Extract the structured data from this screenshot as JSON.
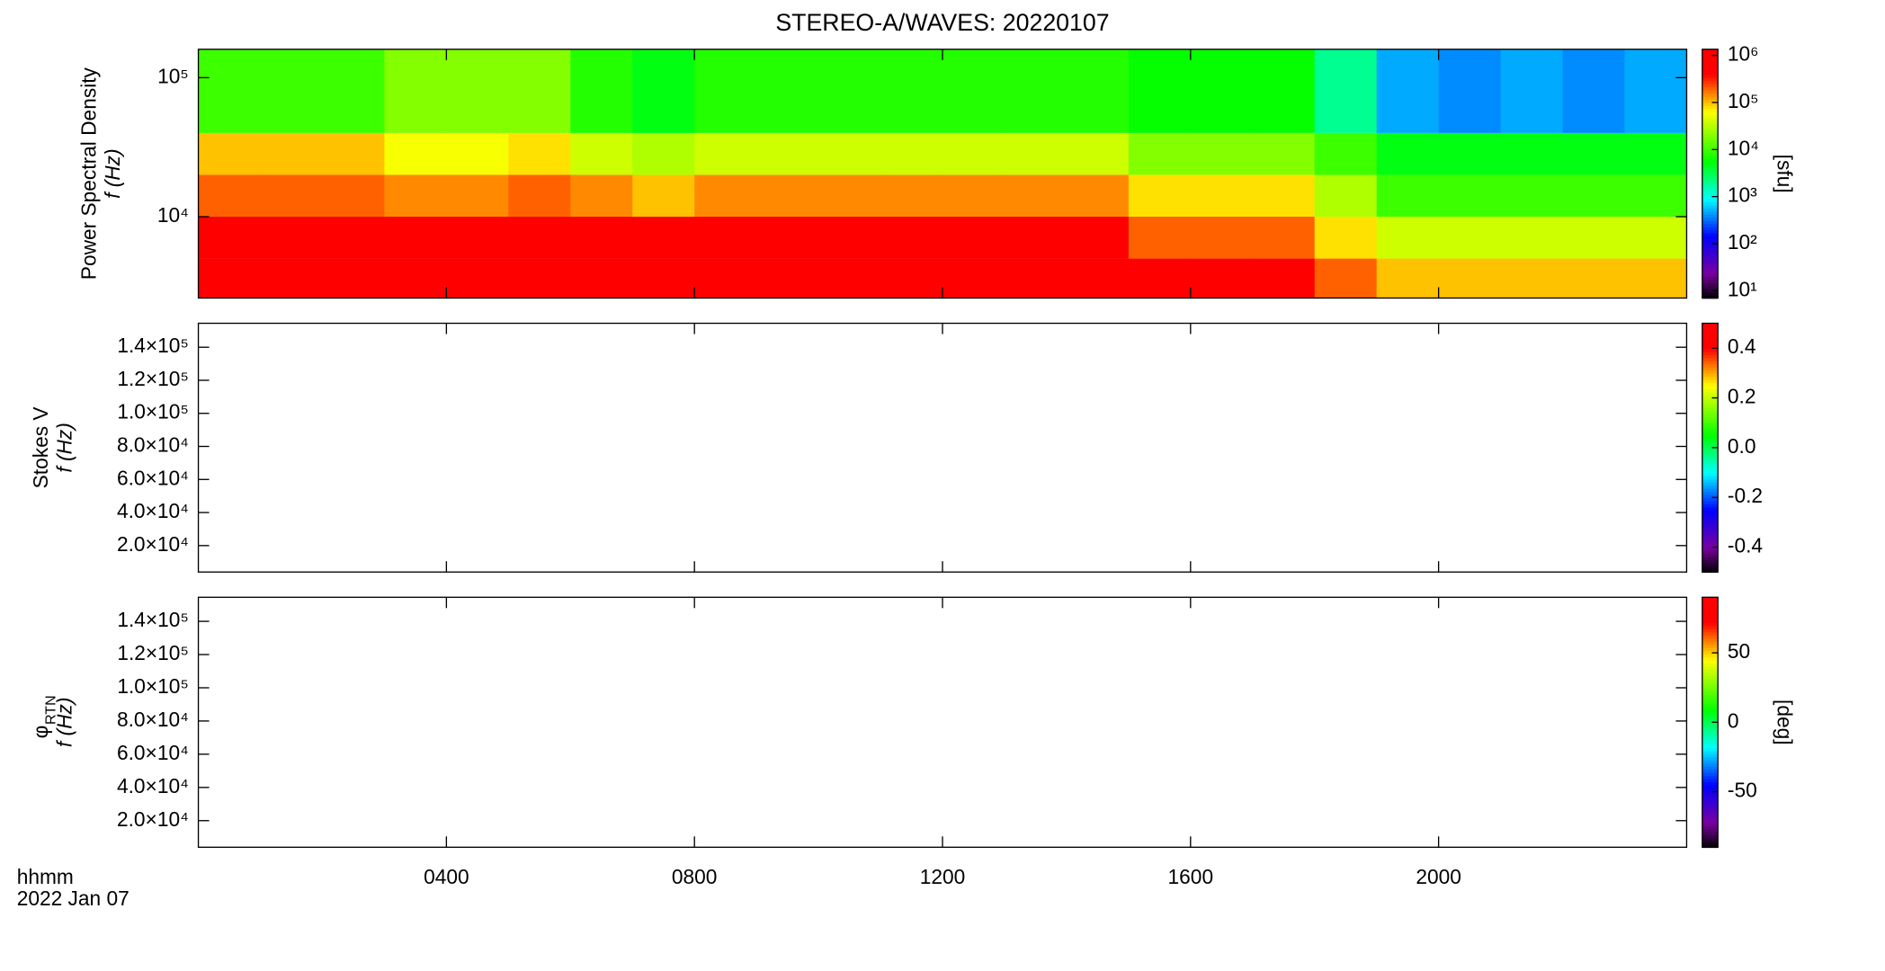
{
  "title": "STEREO-A/WAVES: 20220107",
  "x_label_lines": [
    "hhmm",
    "2022 Jan 07"
  ],
  "chart_data": [
    {
      "type": "heatmap",
      "ylabel": "Power Spectral Density",
      "ylabel2": "f (Hz)",
      "ylog": true,
      "ylim": [
        2600,
        160000
      ],
      "yticks": [
        {
          "value": 10000,
          "label": "10⁴"
        },
        {
          "value": 100000,
          "label": "10⁵"
        }
      ],
      "xlim": [
        0,
        24
      ],
      "x_edges": [
        0,
        1,
        2,
        3,
        4,
        5,
        6,
        7,
        8,
        9,
        10,
        11,
        12,
        13,
        14,
        15,
        16,
        17,
        18,
        19,
        20,
        21,
        22,
        23,
        24
      ],
      "y_edges": [
        2600,
        5000,
        10000,
        20000,
        40000,
        160000
      ],
      "z": [
        [
          1000000,
          1000000,
          1000000,
          1000000,
          1000000,
          1000000,
          1000000,
          1000000,
          1000000,
          1000000,
          1000000,
          1000000,
          1000000,
          1000000,
          1000000,
          500000,
          500000,
          500000,
          200000,
          100000,
          100000,
          100000,
          100000,
          100000
        ],
        [
          500000,
          500000,
          500000,
          500000,
          500000,
          500000,
          400000,
          400000,
          400000,
          400000,
          400000,
          400000,
          400000,
          400000,
          400000,
          200000,
          200000,
          200000,
          80000,
          40000,
          40000,
          40000,
          40000,
          40000
        ],
        [
          200000,
          200000,
          200000,
          150000,
          150000,
          200000,
          150000,
          100000,
          150000,
          150000,
          150000,
          150000,
          150000,
          150000,
          150000,
          80000,
          80000,
          80000,
          30000,
          10000,
          10000,
          10000,
          10000,
          10000
        ],
        [
          100000,
          100000,
          100000,
          60000,
          60000,
          80000,
          40000,
          30000,
          40000,
          40000,
          40000,
          40000,
          40000,
          40000,
          40000,
          20000,
          20000,
          20000,
          10000,
          5000,
          5000,
          5000,
          5000,
          5000
        ],
        [
          10000,
          10000,
          10000,
          20000,
          20000,
          20000,
          8000,
          5000,
          8000,
          8000,
          8000,
          8000,
          8000,
          8000,
          8000,
          6000,
          6000,
          6000,
          2000,
          500,
          400,
          500,
          400,
          500
        ]
      ],
      "zlog": true,
      "zlim": [
        7,
        1350000
      ],
      "zticks": [
        {
          "value": 10,
          "label": "10¹"
        },
        {
          "value": 100,
          "label": "10²"
        },
        {
          "value": 1000,
          "label": "10³"
        },
        {
          "value": 10000,
          "label": "10⁴"
        },
        {
          "value": 100000,
          "label": "10⁵"
        },
        {
          "value": 1000000,
          "label": "10⁶"
        }
      ],
      "zlabel": "[sfu]"
    },
    {
      "type": "heatmap",
      "ylabel": "Stokes V",
      "ylabel2": "f (Hz)",
      "ylim": [
        4000,
        154500
      ],
      "yticks": [
        {
          "value": 20000,
          "label": "2.0×10⁴"
        },
        {
          "value": 40000,
          "label": "4.0×10⁴"
        },
        {
          "value": 60000,
          "label": "6.0×10⁴"
        },
        {
          "value": 80000,
          "label": "8.0×10⁴"
        },
        {
          "value": 100000,
          "label": "1.0×10⁵"
        },
        {
          "value": 120000,
          "label": "1.2×10⁵"
        },
        {
          "value": 140000,
          "label": "1.4×10⁵"
        }
      ],
      "xlim": [
        0,
        24
      ],
      "zlim": [
        -0.5,
        0.5
      ],
      "zticks": [
        0.4,
        0.2,
        {
          "value": 0,
          "label": "0.0"
        },
        -0.2,
        -0.4
      ]
    },
    {
      "type": "heatmap",
      "ylabel_symbol": "φ",
      "ylabel_subscript": "RTN",
      "ylabel2": "f (Hz)",
      "ylim": [
        4000,
        154500
      ],
      "yticks": [
        {
          "value": 20000,
          "label": "2.0×10⁴"
        },
        {
          "value": 40000,
          "label": "4.0×10⁴"
        },
        {
          "value": 60000,
          "label": "6.0×10⁴"
        },
        {
          "value": 80000,
          "label": "8.0×10⁴"
        },
        {
          "value": 100000,
          "label": "1.0×10⁵"
        },
        {
          "value": 120000,
          "label": "1.2×10⁵"
        },
        {
          "value": 140000,
          "label": "1.4×10⁵"
        }
      ],
      "xlim": [
        0,
        24
      ],
      "xticks": [
        {
          "value": 4,
          "label": "0400"
        },
        {
          "value": 8,
          "label": "0800"
        },
        {
          "value": 12,
          "label": "1200"
        },
        {
          "value": 16,
          "label": "1600"
        },
        {
          "value": 20,
          "label": "2000"
        }
      ],
      "zlim": [
        -90,
        90
      ],
      "zticks": [
        50,
        0,
        -50
      ],
      "zlabel": "[deg]"
    }
  ]
}
